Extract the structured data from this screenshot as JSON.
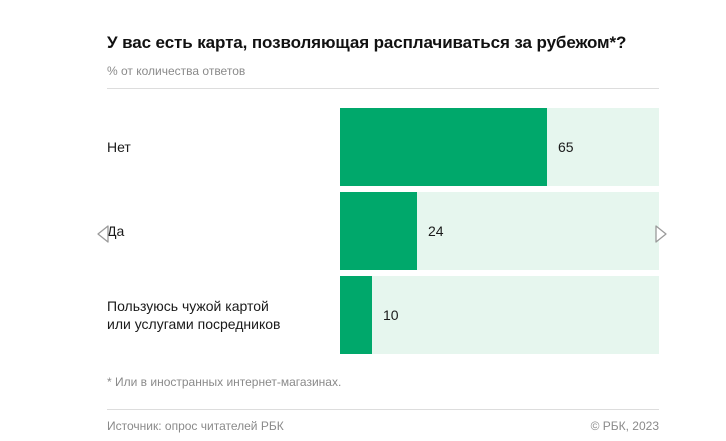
{
  "header": {
    "title": "У вас есть карта, позволяющая расплачиваться за рубежом*?",
    "subtitle": "% от количества ответов"
  },
  "footer": {
    "note": "* Или в иностранных интернет-магазинах.",
    "source": "Источник: опрос читателей РБК",
    "copyright": "© РБК, 2023"
  },
  "nav": {
    "prev_icon": "chevron-left-icon",
    "next_icon": "chevron-right-icon"
  },
  "colors": {
    "bar": "#00a86b",
    "track": "#e6f6ee",
    "accent": "#00a86b"
  },
  "chart_data": {
    "type": "bar",
    "orientation": "horizontal",
    "title": "У вас есть карта, позволяющая расплачиваться за рубежом*?",
    "subtitle": "% от количества ответов",
    "categories": [
      [
        "Нет"
      ],
      [
        "Да"
      ],
      [
        "Пользуюсь чужой картой",
        "или услугами посредников"
      ]
    ],
    "values": [
      65,
      24,
      10
    ],
    "xlim": [
      0,
      100
    ],
    "grid": false,
    "legend": "none"
  }
}
